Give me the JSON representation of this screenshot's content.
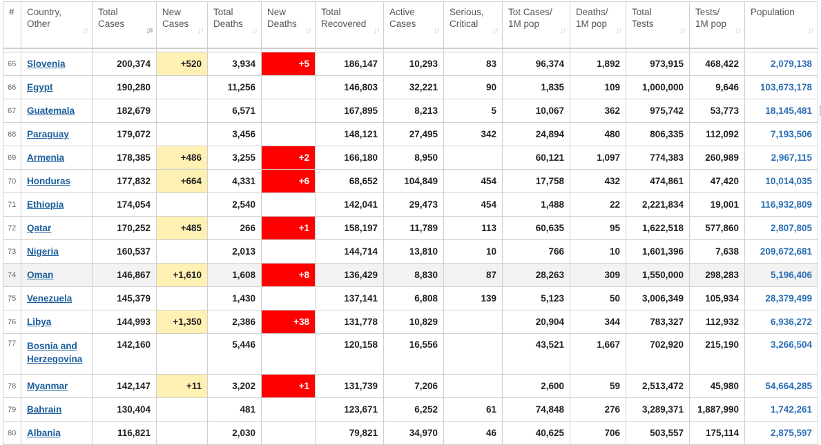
{
  "headers": [
    {
      "key": "num",
      "line1": "#",
      "line2": "",
      "sort": ""
    },
    {
      "key": "country",
      "line1": "Country,",
      "line2": "Other",
      "sort": "sort-icon"
    },
    {
      "key": "total_cases",
      "line1": "Total",
      "line2": "Cases",
      "sort": "sort-desc-icon"
    },
    {
      "key": "new_cases",
      "line1": "New",
      "line2": "Cases",
      "sort": "sort-icon"
    },
    {
      "key": "total_deaths",
      "line1": "Total",
      "line2": "Deaths",
      "sort": "sort-icon"
    },
    {
      "key": "new_deaths",
      "line1": "New",
      "line2": "Deaths",
      "sort": "sort-icon"
    },
    {
      "key": "total_recovered",
      "line1": "Total",
      "line2": "Recovered",
      "sort": "sort-icon"
    },
    {
      "key": "active_cases",
      "line1": "Active",
      "line2": "Cases",
      "sort": "sort-icon"
    },
    {
      "key": "serious_critical",
      "line1": "Serious,",
      "line2": "Critical",
      "sort": "sort-icon"
    },
    {
      "key": "tot_cases_1m",
      "line1": "Tot Cases/",
      "line2": "1M pop",
      "sort": "sort-icon"
    },
    {
      "key": "deaths_1m",
      "line1": "Deaths/",
      "line2": "1M pop",
      "sort": "sort-icon"
    },
    {
      "key": "total_tests",
      "line1": "Total",
      "line2": "Tests",
      "sort": "sort-icon"
    },
    {
      "key": "tests_1m",
      "line1": "Tests/",
      "line2": "1M pop",
      "sort": "sort-icon"
    },
    {
      "key": "population",
      "line1": "Population",
      "line2": "",
      "sort": "sort-icon"
    }
  ],
  "sort_glyphs": {
    "sort-icon": "↓↑",
    "sort-desc-icon": "↓≡"
  },
  "colors": {
    "new_cases_bg": "#fff0b3",
    "new_deaths_bg": "#ff0000",
    "link": "#1b5e9c",
    "population": "#2a6fb5"
  },
  "rows": [
    {
      "num": "65",
      "country": "Slovenia",
      "total_cases": "200,374",
      "new_cases": "+520",
      "total_deaths": "3,934",
      "new_deaths": "+5",
      "total_recovered": "186,147",
      "active_cases": "10,293",
      "serious_critical": "83",
      "tot_cases_1m": "96,374",
      "deaths_1m": "1,892",
      "total_tests": "973,915",
      "tests_1m": "468,422",
      "population": "2,079,138"
    },
    {
      "num": "66",
      "country": "Egypt",
      "total_cases": "190,280",
      "new_cases": "",
      "total_deaths": "11,256",
      "new_deaths": "",
      "total_recovered": "146,803",
      "active_cases": "32,221",
      "serious_critical": "90",
      "tot_cases_1m": "1,835",
      "deaths_1m": "109",
      "total_tests": "1,000,000",
      "tests_1m": "9,646",
      "population": "103,673,178"
    },
    {
      "num": "67",
      "country": "Guatemala",
      "total_cases": "182,679",
      "new_cases": "",
      "total_deaths": "6,571",
      "new_deaths": "",
      "total_recovered": "167,895",
      "active_cases": "8,213",
      "serious_critical": "5",
      "tot_cases_1m": "10,067",
      "deaths_1m": "362",
      "total_tests": "975,742",
      "tests_1m": "53,773",
      "population": "18,145,481"
    },
    {
      "num": "68",
      "country": "Paraguay",
      "total_cases": "179,072",
      "new_cases": "",
      "total_deaths": "3,456",
      "new_deaths": "",
      "total_recovered": "148,121",
      "active_cases": "27,495",
      "serious_critical": "342",
      "tot_cases_1m": "24,894",
      "deaths_1m": "480",
      "total_tests": "806,335",
      "tests_1m": "112,092",
      "population": "7,193,506"
    },
    {
      "num": "69",
      "country": "Armenia",
      "total_cases": "178,385",
      "new_cases": "+486",
      "total_deaths": "3,255",
      "new_deaths": "+2",
      "total_recovered": "166,180",
      "active_cases": "8,950",
      "serious_critical": "",
      "tot_cases_1m": "60,121",
      "deaths_1m": "1,097",
      "total_tests": "774,383",
      "tests_1m": "260,989",
      "population": "2,967,115"
    },
    {
      "num": "70",
      "country": "Honduras",
      "total_cases": "177,832",
      "new_cases": "+664",
      "total_deaths": "4,331",
      "new_deaths": "+6",
      "total_recovered": "68,652",
      "active_cases": "104,849",
      "serious_critical": "454",
      "tot_cases_1m": "17,758",
      "deaths_1m": "432",
      "total_tests": "474,861",
      "tests_1m": "47,420",
      "population": "10,014,035"
    },
    {
      "num": "71",
      "country": "Ethiopia",
      "total_cases": "174,054",
      "new_cases": "",
      "total_deaths": "2,540",
      "new_deaths": "",
      "total_recovered": "142,041",
      "active_cases": "29,473",
      "serious_critical": "454",
      "tot_cases_1m": "1,488",
      "deaths_1m": "22",
      "total_tests": "2,221,834",
      "tests_1m": "19,001",
      "population": "116,932,809"
    },
    {
      "num": "72",
      "country": "Qatar",
      "total_cases": "170,252",
      "new_cases": "+485",
      "total_deaths": "266",
      "new_deaths": "+1",
      "total_recovered": "158,197",
      "active_cases": "11,789",
      "serious_critical": "113",
      "tot_cases_1m": "60,635",
      "deaths_1m": "95",
      "total_tests": "1,622,518",
      "tests_1m": "577,860",
      "population": "2,807,805"
    },
    {
      "num": "73",
      "country": "Nigeria",
      "total_cases": "160,537",
      "new_cases": "",
      "total_deaths": "2,013",
      "new_deaths": "",
      "total_recovered": "144,714",
      "active_cases": "13,810",
      "serious_critical": "10",
      "tot_cases_1m": "766",
      "deaths_1m": "10",
      "total_tests": "1,601,396",
      "tests_1m": "7,638",
      "population": "209,672,681"
    },
    {
      "num": "74",
      "country": "Oman",
      "total_cases": "146,867",
      "new_cases": "+1,610",
      "total_deaths": "1,608",
      "new_deaths": "+8",
      "total_recovered": "136,429",
      "active_cases": "8,830",
      "serious_critical": "87",
      "tot_cases_1m": "28,263",
      "deaths_1m": "309",
      "total_tests": "1,550,000",
      "tests_1m": "298,283",
      "population": "5,196,406"
    },
    {
      "num": "75",
      "country": "Venezuela",
      "total_cases": "145,379",
      "new_cases": "",
      "total_deaths": "1,430",
      "new_deaths": "",
      "total_recovered": "137,141",
      "active_cases": "6,808",
      "serious_critical": "139",
      "tot_cases_1m": "5,123",
      "deaths_1m": "50",
      "total_tests": "3,006,349",
      "tests_1m": "105,934",
      "population": "28,379,499"
    },
    {
      "num": "76",
      "country": "Libya",
      "total_cases": "144,993",
      "new_cases": "+1,350",
      "total_deaths": "2,386",
      "new_deaths": "+38",
      "total_recovered": "131,778",
      "active_cases": "10,829",
      "serious_critical": "",
      "tot_cases_1m": "20,904",
      "deaths_1m": "344",
      "total_tests": "783,327",
      "tests_1m": "112,932",
      "population": "6,936,272"
    },
    {
      "num": "77",
      "country": "Bosnia and Herzegovina",
      "total_cases": "142,160",
      "new_cases": "",
      "total_deaths": "5,446",
      "new_deaths": "",
      "total_recovered": "120,158",
      "active_cases": "16,556",
      "serious_critical": "",
      "tot_cases_1m": "43,521",
      "deaths_1m": "1,667",
      "total_tests": "702,920",
      "tests_1m": "215,190",
      "population": "3,266,504"
    },
    {
      "num": "78",
      "country": "Myanmar",
      "total_cases": "142,147",
      "new_cases": "+11",
      "total_deaths": "3,202",
      "new_deaths": "+1",
      "total_recovered": "131,739",
      "active_cases": "7,206",
      "serious_critical": "",
      "tot_cases_1m": "2,600",
      "deaths_1m": "59",
      "total_tests": "2,513,472",
      "tests_1m": "45,980",
      "population": "54,664,285"
    },
    {
      "num": "79",
      "country": "Bahrain",
      "total_cases": "130,404",
      "new_cases": "",
      "total_deaths": "481",
      "new_deaths": "",
      "total_recovered": "123,671",
      "active_cases": "6,252",
      "serious_critical": "61",
      "tot_cases_1m": "74,848",
      "deaths_1m": "276",
      "total_tests": "3,289,371",
      "tests_1m": "1,887,990",
      "population": "1,742,261"
    },
    {
      "num": "80",
      "country": "Albania",
      "total_cases": "116,821",
      "new_cases": "",
      "total_deaths": "2,030",
      "new_deaths": "",
      "total_recovered": "79,821",
      "active_cases": "34,970",
      "serious_critical": "46",
      "tot_cases_1m": "40,625",
      "deaths_1m": "706",
      "total_tests": "503,557",
      "tests_1m": "175,114",
      "population": "2,875,597"
    }
  ]
}
